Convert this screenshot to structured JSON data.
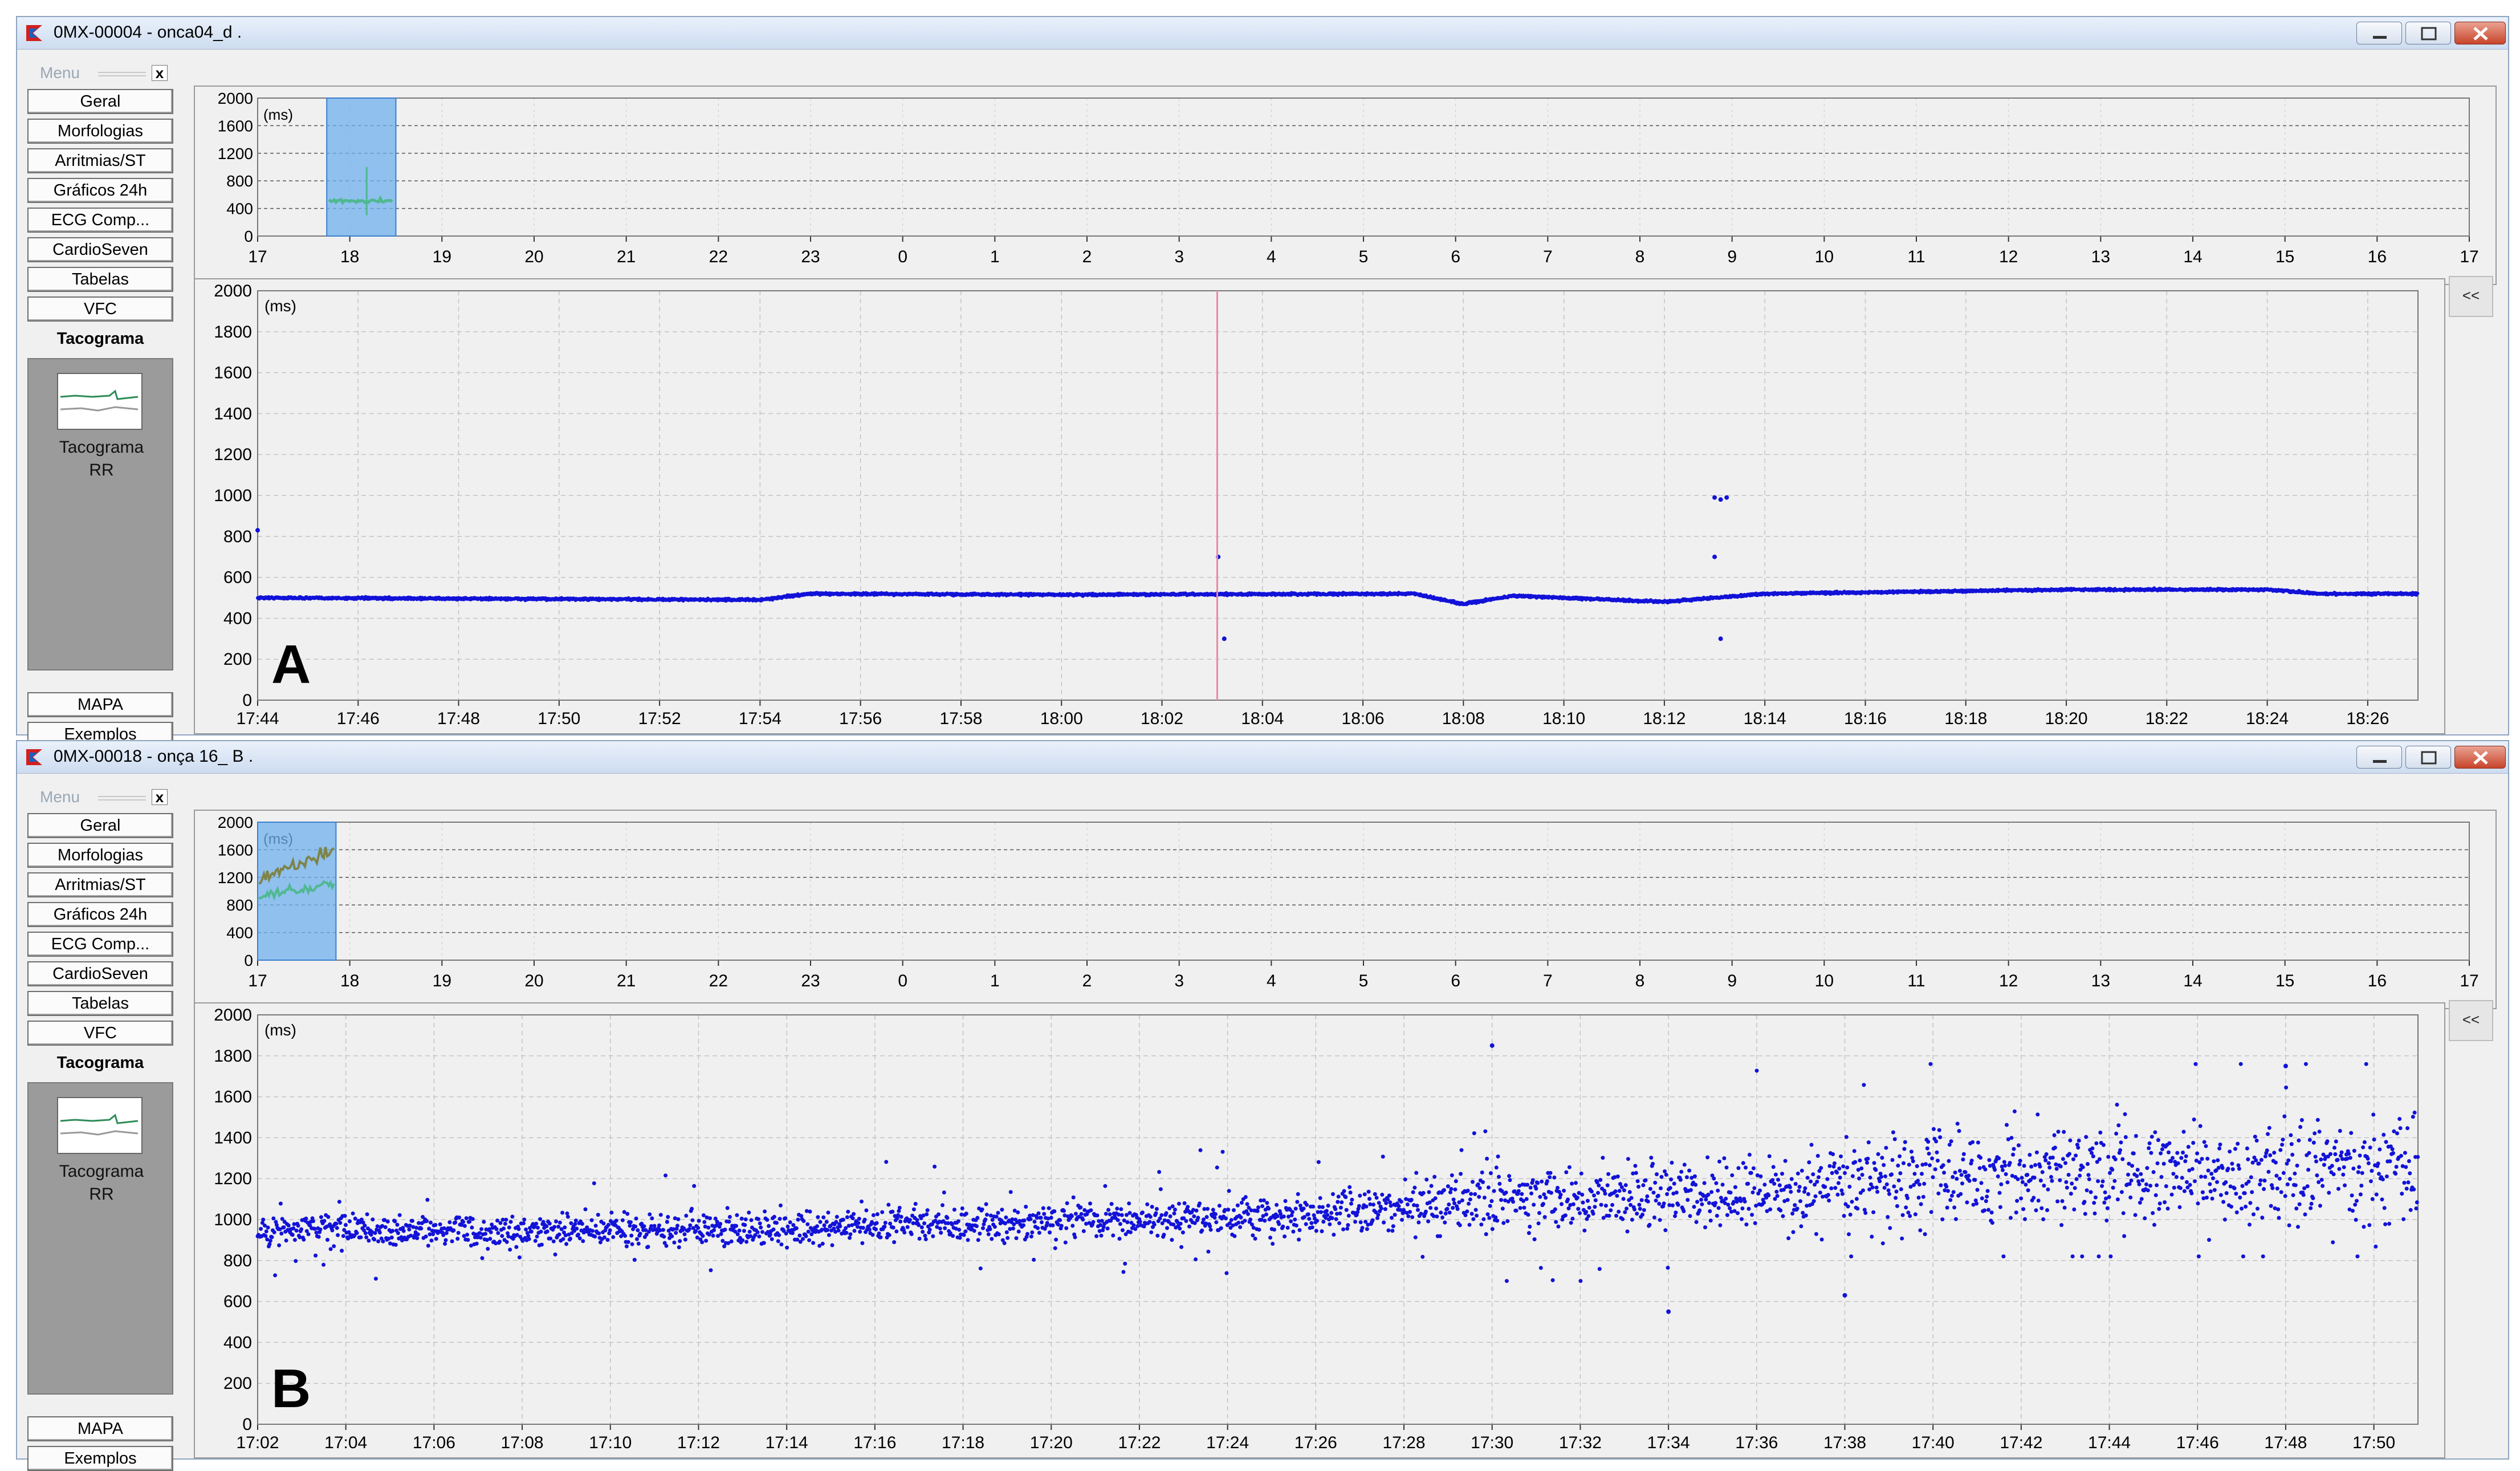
{
  "colors": {
    "points": "#1212d8",
    "overview_selection": "#6fb0ee",
    "overview_trace_green": "#4fb890",
    "overview_trace_olive": "#7e8448",
    "marker_line": "#e88aa5",
    "window_close": "#c8442b"
  },
  "sidebar": {
    "menu_title": "Menu",
    "close_glyph": "x",
    "items": [
      {
        "label": "Geral"
      },
      {
        "label": "Morfologias"
      },
      {
        "label": "Arritmias/ST"
      },
      {
        "label": "Gráficos 24h"
      },
      {
        "label": "ECG Comp..."
      },
      {
        "label": "CardioSeven"
      },
      {
        "label": "Tabelas"
      },
      {
        "label": "VFC"
      },
      {
        "label": "Tacograma"
      }
    ],
    "active_item": "Tacograma",
    "panel": {
      "line1": "Tacograma",
      "line2": "RR",
      "thumb_icon": "tachogram-thumbnail-icon"
    },
    "bottom_items": [
      {
        "label": "MAPA"
      },
      {
        "label": "Exemplos"
      }
    ]
  },
  "collapse_label": "<<",
  "window_buttons": {
    "minimize_icon": "minimize-icon",
    "maximize_icon": "maximize-icon",
    "close_icon": "close-icon"
  },
  "windows": [
    {
      "title": "0MX-00004 - onca04_d .",
      "panel_letter": "A",
      "overview": {
        "unit": "(ms)",
        "y_ticks": [
          "2000",
          "1600",
          "1200",
          "800",
          "400",
          "0"
        ],
        "x_ticks": [
          "17",
          "18",
          "19",
          "20",
          "21",
          "22",
          "23",
          "0",
          "1",
          "2",
          "3",
          "4",
          "5",
          "6",
          "7",
          "8",
          "9",
          "10",
          "11",
          "12",
          "13",
          "14",
          "15",
          "16",
          "17"
        ],
        "selection_hours": [
          17.75,
          18.5
        ]
      },
      "main": {
        "unit": "(ms)",
        "y_ticks": [
          "2000",
          "1800",
          "1600",
          "1400",
          "1200",
          "1000",
          "800",
          "600",
          "400",
          "200",
          "0"
        ],
        "x_ticks": [
          "17:44",
          "17:46",
          "17:48",
          "17:50",
          "17:52",
          "17:54",
          "17:56",
          "17:58",
          "18:00",
          "18:02",
          "18:04",
          "18:06",
          "18:08",
          "18:10",
          "18:12",
          "18:14",
          "18:16",
          "18:18",
          "18:20",
          "18:22",
          "18:24",
          "18:26"
        ],
        "marker_time": "18:03"
      }
    },
    {
      "title": "0MX-00018 - onça 16_ B .",
      "panel_letter": "B",
      "overview": {
        "unit": "(ms)",
        "y_ticks": [
          "2000",
          "1600",
          "1200",
          "800",
          "400",
          "0"
        ],
        "x_ticks": [
          "17",
          "18",
          "19",
          "20",
          "21",
          "22",
          "23",
          "0",
          "1",
          "2",
          "3",
          "4",
          "5",
          "6",
          "7",
          "8",
          "9",
          "10",
          "11",
          "12",
          "13",
          "14",
          "15",
          "16",
          "17"
        ],
        "selection_hours": [
          17.0,
          17.85
        ]
      },
      "main": {
        "unit": "(ms)",
        "y_ticks": [
          "2000",
          "1800",
          "1600",
          "1400",
          "1200",
          "1000",
          "800",
          "600",
          "400",
          "200",
          "0"
        ],
        "x_ticks": [
          "17:02",
          "17:04",
          "17:06",
          "17:08",
          "17:10",
          "17:12",
          "17:14",
          "17:16",
          "17:18",
          "17:20",
          "17:22",
          "17:24",
          "17:26",
          "17:28",
          "17:30",
          "17:32",
          "17:34",
          "17:36",
          "17:38",
          "17:40",
          "17:42",
          "17:44",
          "17:46",
          "17:48",
          "17:50"
        ]
      }
    }
  ],
  "chart_data": [
    {
      "type": "scatter",
      "title": "Tacograma RR",
      "ylabel": "(ms)",
      "ylim": [
        0,
        2000
      ],
      "grid": true,
      "x_start": "17:44",
      "x_end": "18:27",
      "series": [
        {
          "trend": [
            [
              "17:44",
              500
            ],
            [
              "17:54",
              490
            ],
            [
              "17:55",
              520
            ],
            [
              "18:00",
              515
            ],
            [
              "18:07",
              520
            ],
            [
              "18:08",
              470
            ],
            [
              "18:09",
              510
            ],
            [
              "18:12",
              480
            ],
            [
              "18:13",
              500
            ],
            [
              "18:14",
              520
            ],
            [
              "18:20",
              540
            ],
            [
              "18:24",
              540
            ],
            [
              "18:25",
              520
            ],
            [
              "18:27",
              520
            ]
          ]
        },
        {
          "outliers": [
            [
              "17:44",
              830
            ],
            [
              "18:03",
              700
            ],
            [
              "18:03",
              300
            ],
            [
              "18:13",
              990
            ],
            [
              "18:13",
              980
            ],
            [
              "18:13",
              990
            ],
            [
              "18:13",
              700
            ],
            [
              "18:13",
              300
            ]
          ]
        }
      ]
    },
    {
      "type": "scatter",
      "title": "Tacograma RR",
      "ylabel": "(ms)",
      "ylim": [
        0,
        2000
      ],
      "grid": true,
      "x_start": "17:02",
      "x_end": "17:51",
      "series": [
        {
          "band": [
            [
              "17:02",
              950,
              80
            ],
            [
              "17:10",
              940,
              90
            ],
            [
              "17:20",
              990,
              110
            ],
            [
              "17:26",
              1020,
              130
            ],
            [
              "17:30",
              1100,
              180
            ],
            [
              "17:36",
              1130,
              220
            ],
            [
              "17:40",
              1200,
              280
            ],
            [
              "17:50",
              1250,
              300
            ]
          ]
        },
        {
          "outliers": [
            [
              "17:30",
              1850
            ],
            [
              "17:34",
              550
            ],
            [
              "17:38",
              630
            ],
            [
              "17:48",
              1750
            ]
          ]
        }
      ]
    }
  ]
}
